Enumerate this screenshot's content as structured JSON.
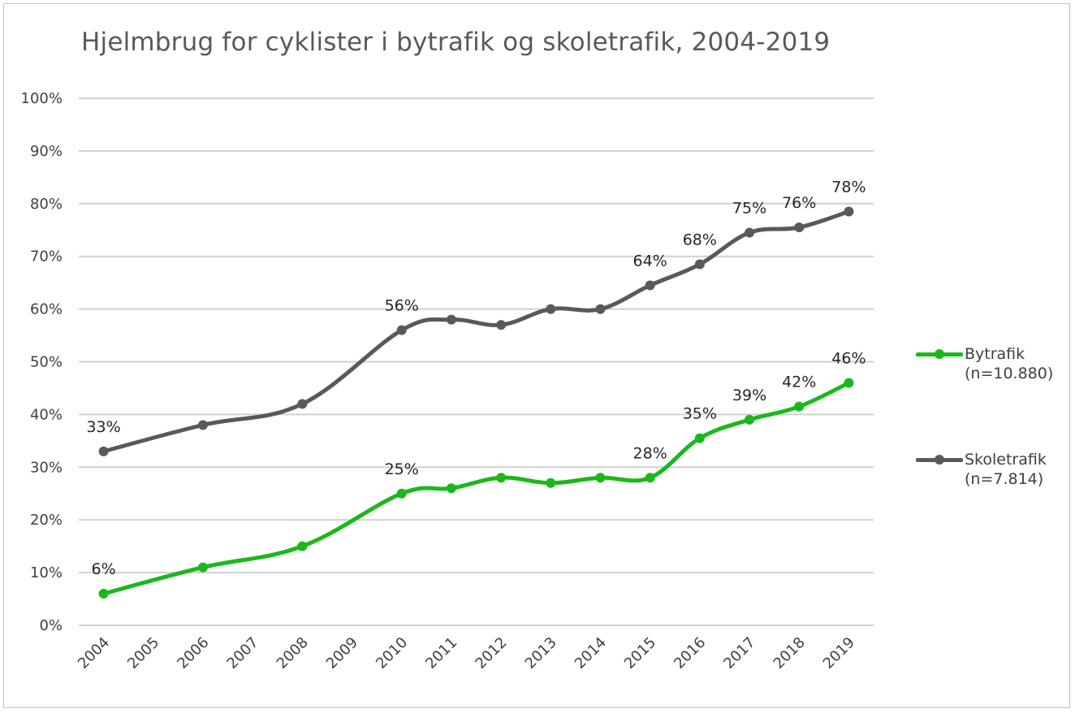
{
  "chart_data": {
    "type": "line",
    "title": "Hjelmbrug for cyklister i bytrafik og skoletrafik, 2004-2019",
    "x": [
      "2004",
      "2005",
      "2006",
      "2007",
      "2008",
      "2009",
      "2010",
      "2011",
      "2012",
      "2013",
      "2014",
      "2015",
      "2016",
      "2017",
      "2018",
      "2019"
    ],
    "ylim": [
      0,
      100
    ],
    "yticks": [
      "0%",
      "10%",
      "20%",
      "30%",
      "40%",
      "50%",
      "60%",
      "70%",
      "80%",
      "90%",
      "100%"
    ],
    "grid": true,
    "legend_position": "right",
    "series": [
      {
        "key": "bytrafik",
        "name": "Bytrafik",
        "name_sub": "(n=10.880)",
        "color": "#1bb81b",
        "points": [
          {
            "x": "2004",
            "y": 6,
            "label": "6%"
          },
          {
            "x": "2006",
            "y": 11
          },
          {
            "x": "2008",
            "y": 15
          },
          {
            "x": "2010",
            "y": 25,
            "label": "25%"
          },
          {
            "x": "2011",
            "y": 26
          },
          {
            "x": "2012",
            "y": 28
          },
          {
            "x": "2013",
            "y": 27
          },
          {
            "x": "2014",
            "y": 28
          },
          {
            "x": "2015",
            "y": 28,
            "label": "28%"
          },
          {
            "x": "2016",
            "y": 35.5,
            "label": "35%"
          },
          {
            "x": "2017",
            "y": 39,
            "label": "39%"
          },
          {
            "x": "2018",
            "y": 41.5,
            "label": "42%"
          },
          {
            "x": "2019",
            "y": 46,
            "label": "46%"
          }
        ]
      },
      {
        "key": "skoletrafik",
        "name": "Skoletrafik",
        "name_sub": "(n=7.814)",
        "color": "#595959",
        "points": [
          {
            "x": "2004",
            "y": 33,
            "label": "33%"
          },
          {
            "x": "2006",
            "y": 38
          },
          {
            "x": "2008",
            "y": 42
          },
          {
            "x": "2010",
            "y": 56,
            "label": "56%"
          },
          {
            "x": "2011",
            "y": 58
          },
          {
            "x": "2012",
            "y": 57
          },
          {
            "x": "2013",
            "y": 60
          },
          {
            "x": "2014",
            "y": 60
          },
          {
            "x": "2015",
            "y": 64.5,
            "label": "64%"
          },
          {
            "x": "2016",
            "y": 68.5,
            "label": "68%"
          },
          {
            "x": "2017",
            "y": 74.5,
            "label": "75%"
          },
          {
            "x": "2018",
            "y": 75.5,
            "label": "76%"
          },
          {
            "x": "2019",
            "y": 78.5,
            "label": "78%"
          }
        ]
      }
    ]
  }
}
